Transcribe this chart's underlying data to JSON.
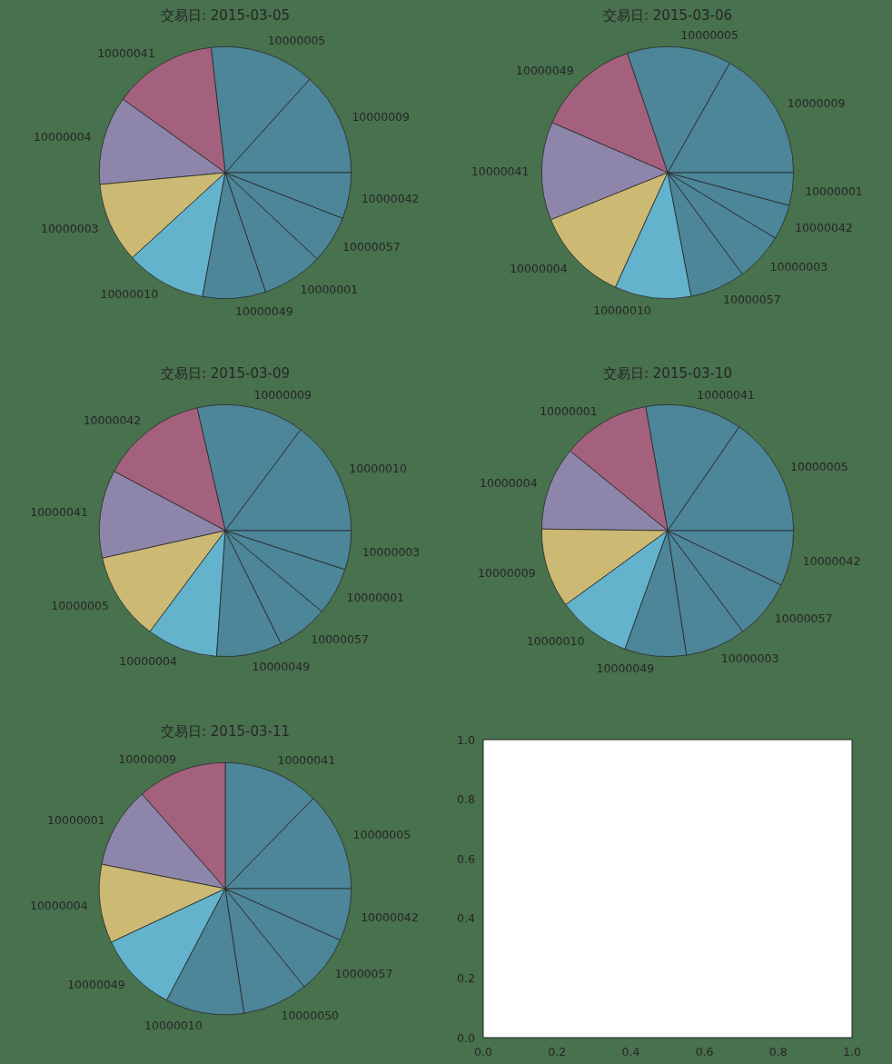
{
  "chart_data": [
    {
      "type": "pie",
      "title": "交易日: 2015-03-05",
      "categories": [
        "10000009",
        "10000005",
        "10000041",
        "10000004",
        "10000003",
        "10000010",
        "10000049",
        "10000001",
        "10000057",
        "10000042"
      ],
      "values": [
        13.3,
        13.5,
        13.3,
        11.4,
        10.3,
        10.3,
        8.1,
        7.8,
        6.1,
        5.9
      ],
      "colors": [
        "#4d8599",
        "#4d8599",
        "#a3617e",
        "#8e86aa",
        "#ccb974",
        "#64b3cd",
        "#4d8599",
        "#4d8599",
        "#4d8599",
        "#4d8599"
      ]
    },
    {
      "type": "pie",
      "title": "交易日: 2015-03-06",
      "categories": [
        "10000009",
        "10000005",
        "10000049",
        "10000041",
        "10000004",
        "10000010",
        "10000057",
        "10000003",
        "10000042",
        "10000001"
      ],
      "values": [
        16.8,
        13.4,
        13.3,
        12.6,
        12.1,
        9.8,
        7.1,
        6.2,
        4.5,
        4.2
      ],
      "colors": [
        "#4d8599",
        "#4d8599",
        "#a3617e",
        "#8e86aa",
        "#ccb974",
        "#64b3cd",
        "#4d8599",
        "#4d8599",
        "#4d8599",
        "#4d8599"
      ]
    },
    {
      "type": "pie",
      "title": "交易日: 2015-03-09",
      "categories": [
        "10000010",
        "10000009",
        "10000042",
        "10000041",
        "10000005",
        "10000004",
        "10000049",
        "10000057",
        "10000001",
        "10000003"
      ],
      "values": [
        14.8,
        13.8,
        13.6,
        11.3,
        11.3,
        9.1,
        8.4,
        6.6,
        6.1,
        5.0
      ],
      "colors": [
        "#4d8599",
        "#4d8599",
        "#a3617e",
        "#8e86aa",
        "#ccb974",
        "#64b3cd",
        "#4d8599",
        "#4d8599",
        "#4d8599",
        "#4d8599"
      ]
    },
    {
      "type": "pie",
      "title": "交易日: 2015-03-10",
      "categories": [
        "10000005",
        "10000041",
        "10000001",
        "10000004",
        "10000009",
        "10000010",
        "10000049",
        "10000003",
        "10000057",
        "10000042"
      ],
      "values": [
        15.4,
        12.4,
        11.3,
        10.7,
        10.2,
        9.5,
        7.9,
        7.8,
        7.7,
        7.1
      ],
      "colors": [
        "#4d8599",
        "#4d8599",
        "#a3617e",
        "#8e86aa",
        "#ccb974",
        "#64b3cd",
        "#4d8599",
        "#4d8599",
        "#4d8599",
        "#4d8599"
      ]
    },
    {
      "type": "pie",
      "title": "交易日: 2015-03-11",
      "categories": [
        "10000005",
        "10000041",
        "10000009",
        "10000001",
        "10000004",
        "10000049",
        "10000010",
        "10000050",
        "10000057",
        "10000042"
      ],
      "values": [
        12.7,
        12.3,
        11.5,
        10.4,
        10.1,
        10.3,
        10.1,
        8.4,
        7.5,
        6.7
      ],
      "colors": [
        "#4d8599",
        "#4d8599",
        "#a3617e",
        "#8e86aa",
        "#ccb974",
        "#64b3cd",
        "#4d8599",
        "#4d8599",
        "#4d8599",
        "#4d8599"
      ]
    },
    {
      "type": "scatter",
      "xlim": [
        0,
        1
      ],
      "ylim": [
        0,
        1
      ],
      "xticks": [
        {
          "value": 0,
          "label": "0.0"
        },
        0.2,
        0.4,
        0.6,
        0.8,
        {
          "value": 1,
          "label": "1.0"
        }
      ],
      "yticks": [
        {
          "value": 0,
          "label": "0.0"
        },
        0.2,
        0.4,
        0.6,
        0.8,
        {
          "value": 1,
          "label": "1.0"
        }
      ]
    }
  ]
}
